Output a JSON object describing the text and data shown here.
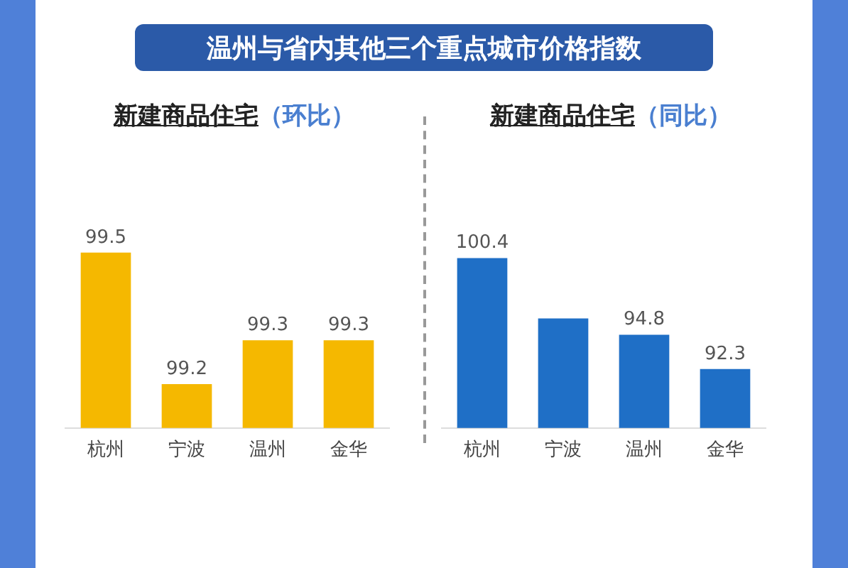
{
  "chart_data": [
    {
      "type": "other",
      "title": "温州与省内其他三个重点城市价格指数"
    },
    {
      "type": "bar",
      "title": "新建商品住宅",
      "subtitle": "（环比）",
      "categories": [
        "杭州",
        "宁波",
        "温州",
        "金华"
      ],
      "values": [
        99.5,
        99.2,
        99.3,
        99.3
      ],
      "color": "#f5b800",
      "value_labels": [
        "99.5",
        "99.2",
        "99.3",
        "99.3"
      ]
    },
    {
      "type": "bar",
      "title": "新建商品住宅",
      "subtitle": "（同比）",
      "categories": [
        "杭州",
        "宁波",
        "温州",
        "金华"
      ],
      "values": [
        100.4,
        96.0,
        94.8,
        92.3
      ],
      "color": "#1f6fc6",
      "value_labels": [
        "100.4",
        null,
        "94.8",
        "92.3"
      ]
    }
  ]
}
